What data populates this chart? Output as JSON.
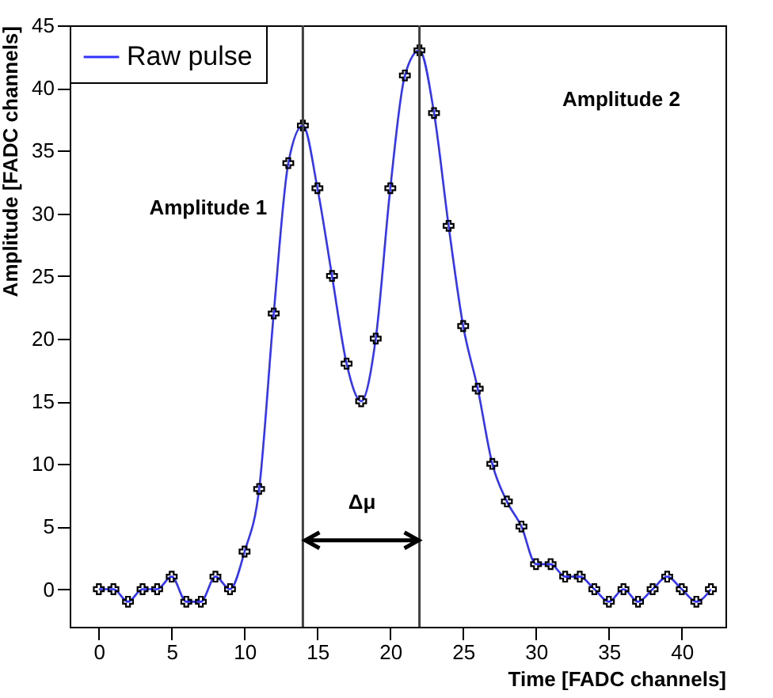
{
  "chart_data": {
    "type": "line",
    "xlabel": "Time [FADC channels]",
    "ylabel": "Amplitude [FADC channels]",
    "x": [
      0,
      1,
      2,
      3,
      4,
      5,
      6,
      7,
      8,
      9,
      10,
      11,
      12,
      13,
      14,
      15,
      16,
      17,
      18,
      19,
      20,
      21,
      22,
      23,
      24,
      25,
      26,
      27,
      28,
      29,
      30,
      31,
      32,
      33,
      34,
      35,
      36,
      37,
      38,
      39,
      40,
      41,
      42
    ],
    "series": [
      {
        "name": "Raw pulse",
        "color": "#3333ff",
        "values": [
          0,
          0,
          -1,
          0,
          0,
          1,
          -1,
          -1,
          1,
          0,
          3,
          8,
          22,
          34,
          37,
          32,
          25,
          18,
          15,
          20,
          32,
          41,
          43,
          38,
          29,
          21,
          16,
          10,
          7,
          5,
          2,
          2,
          1,
          1,
          0,
          -1,
          0,
          -1,
          0,
          1,
          0,
          -1,
          0
        ]
      }
    ],
    "xlim": [
      -2,
      43
    ],
    "ylim": [
      -3,
      45
    ],
    "xticks": [
      0,
      5,
      10,
      15,
      20,
      25,
      30,
      35,
      40
    ],
    "yticks": [
      0,
      5,
      10,
      15,
      20,
      25,
      30,
      35,
      40,
      45
    ],
    "ref_lines": [
      {
        "axis": "x",
        "value": 14,
        "color": "#404040"
      },
      {
        "axis": "x",
        "value": 22,
        "color": "#404040"
      }
    ],
    "annotations": [
      "Amplitude 1",
      "Amplitude 2",
      "Δμ"
    ],
    "marker": "cross",
    "line_style": "solid",
    "legend": "top left",
    "grid": false
  }
}
